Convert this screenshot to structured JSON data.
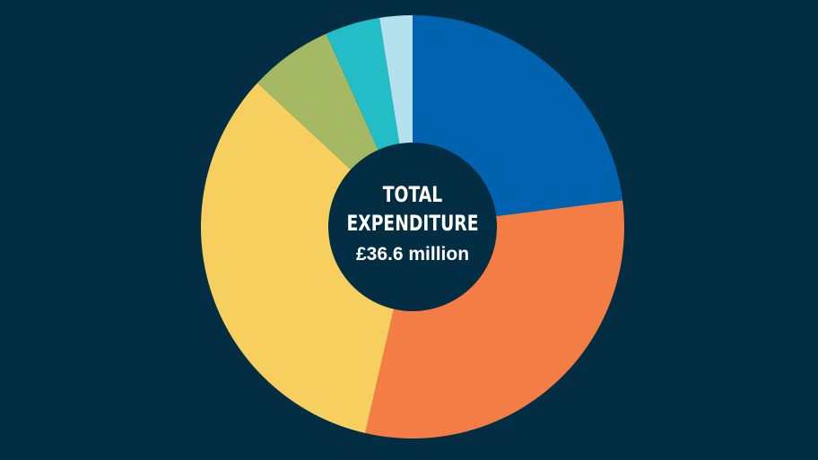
{
  "chart_data": {
    "type": "pie",
    "values": [
      23,
      30.6,
      33.3,
      6.4,
      4.2,
      2.5
    ],
    "colors": [
      "#0063b0",
      "#f47c45",
      "#f7cf5f",
      "#a5b965",
      "#22bdc6",
      "#b3e2ec"
    ],
    "center_text": [
      "TOTAL",
      "EXPENDITURE"
    ],
    "center_value": "£36.6 million"
  }
}
